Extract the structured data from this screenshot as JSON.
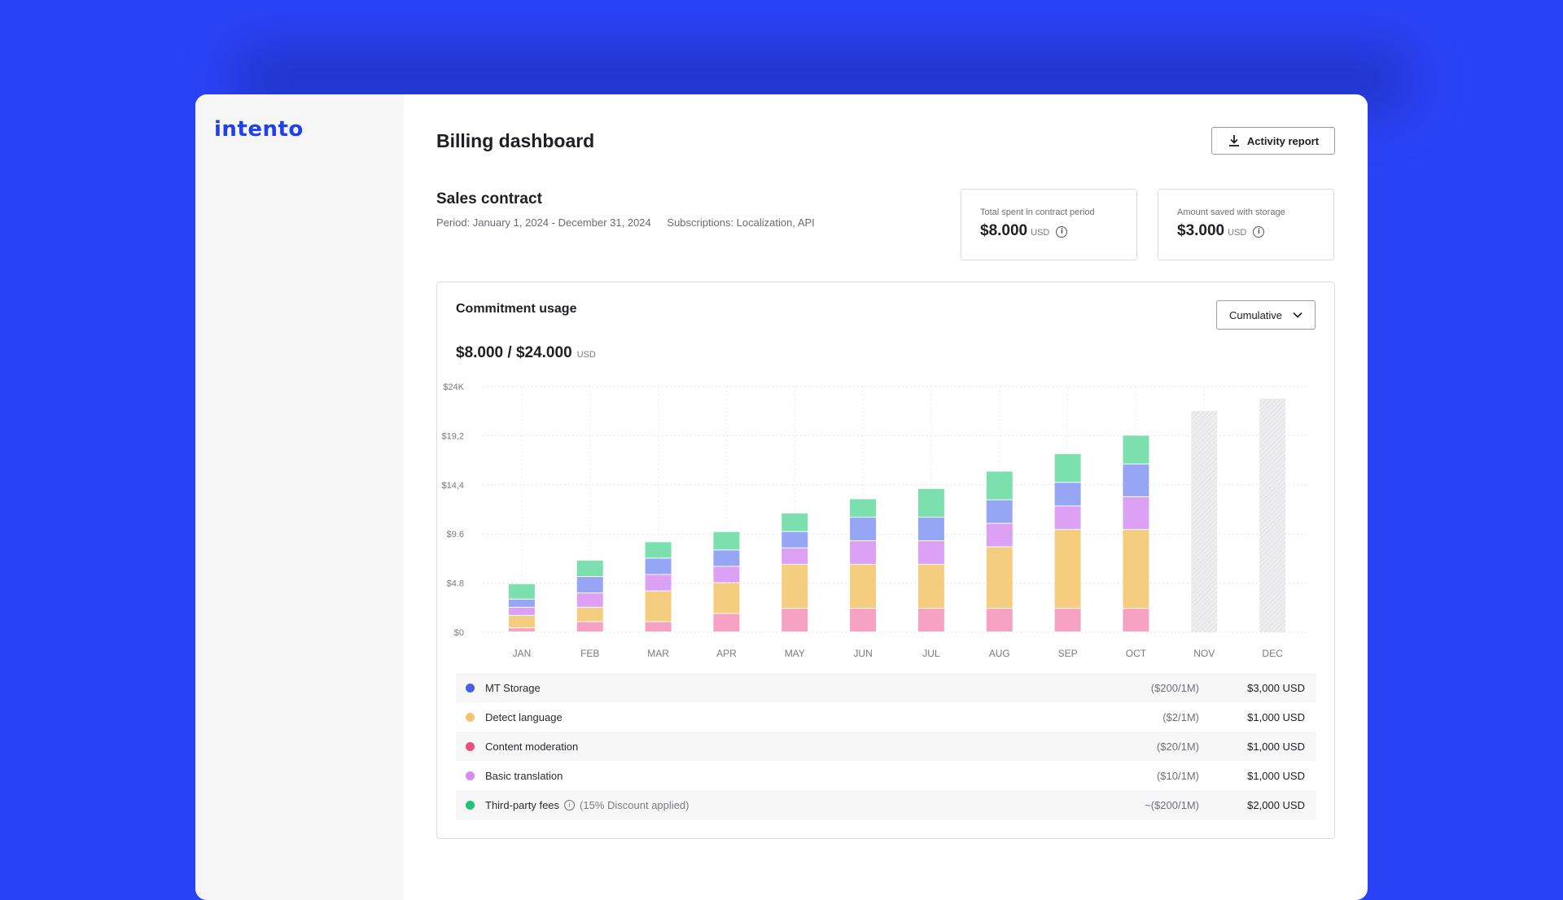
{
  "app": {
    "logo": "intento"
  },
  "header": {
    "title": "Billing dashboard",
    "activity_button": "Activity report"
  },
  "contract": {
    "title": "Sales contract",
    "period": "Period: January 1, 2024 - December 31, 2024",
    "subscriptions": "Subscriptions: Localization, API"
  },
  "stats": [
    {
      "label": "Total spent in contract period",
      "amount": "$8.000",
      "unit": "USD"
    },
    {
      "label": "Amount saved with storage",
      "amount": "$3.000",
      "unit": "USD"
    }
  ],
  "usage": {
    "title": "Commitment usage",
    "mode": "Cumulative",
    "total": "$8.000 / $24.000",
    "unit": "USD"
  },
  "colors": {
    "background": "#2a42f6",
    "mt_storage": "#97a5f5",
    "detect_language": "#f5cd7e",
    "content_moderation": "#f6a2c3",
    "basic_translation": "#dca1f5",
    "third_party": "#7be0ae",
    "projection": "#e8e8ea"
  },
  "legend": [
    {
      "name": "MT Storage",
      "dot": "#4860e8",
      "note": "",
      "rate": "($200/1M)",
      "cost": "$3,000 USD",
      "info": false
    },
    {
      "name": "Detect language",
      "dot": "#f2c46e",
      "note": "",
      "rate": "($2/1M)",
      "cost": "$1,000 USD",
      "info": false
    },
    {
      "name": "Content moderation",
      "dot": "#ef4f7d",
      "note": "",
      "rate": "($20/1M)",
      "cost": "$1,000 USD",
      "info": false
    },
    {
      "name": "Basic translation",
      "dot": "#d98af0",
      "note": "",
      "rate": "($10/1M)",
      "cost": "$1,000 USD",
      "info": false
    },
    {
      "name": "Third-party fees",
      "dot": "#1fc37b",
      "note": "(15% Discount applied)",
      "rate": "~($200/1M)",
      "cost": "$2,000 USD",
      "info": true
    }
  ],
  "chart_data": {
    "type": "bar",
    "stacked": true,
    "categories": [
      "JAN",
      "FEB",
      "MAR",
      "APR",
      "MAY",
      "JUN",
      "JUL",
      "AUG",
      "SEP",
      "OCT",
      "NOV",
      "DEC"
    ],
    "ytick_labels": [
      "$0",
      "$4.8",
      "$9.6",
      "$14,4",
      "$19,2",
      "$24K"
    ],
    "ylim": [
      0,
      24
    ],
    "grid": true,
    "series": [
      {
        "name": "Content moderation",
        "color": "#f6a2c3",
        "values": [
          0.4,
          1.0,
          1.0,
          1.8,
          2.3,
          2.3,
          2.3,
          2.3,
          2.3,
          2.3,
          null,
          null
        ]
      },
      {
        "name": "Detect language",
        "color": "#f5cd7e",
        "values": [
          1.2,
          1.4,
          3.0,
          3.0,
          4.3,
          4.3,
          4.3,
          6.0,
          7.7,
          7.7,
          null,
          null
        ]
      },
      {
        "name": "Basic translation",
        "color": "#dca1f5",
        "values": [
          0.8,
          1.4,
          1.6,
          1.6,
          1.6,
          2.3,
          2.3,
          2.3,
          2.3,
          3.2,
          null,
          null
        ]
      },
      {
        "name": "MT Storage",
        "color": "#97a5f5",
        "values": [
          0.8,
          1.6,
          1.6,
          1.6,
          1.6,
          2.3,
          2.3,
          2.3,
          2.3,
          3.2,
          null,
          null
        ]
      },
      {
        "name": "Third-party fees",
        "color": "#7be0ae",
        "values": [
          1.5,
          1.6,
          1.6,
          1.8,
          1.8,
          1.8,
          2.8,
          2.8,
          2.8,
          2.8,
          null,
          null
        ]
      }
    ],
    "projection": {
      "color": "#e8e8ea",
      "values": [
        null,
        null,
        null,
        null,
        null,
        null,
        null,
        null,
        null,
        null,
        21.6,
        22.8
      ]
    }
  }
}
